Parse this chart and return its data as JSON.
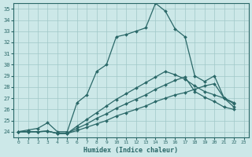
{
  "xlabel": "Humidex (Indice chaleur)",
  "background_color": "#cce8e8",
  "grid_color": "#a0c8c8",
  "line_color": "#2a6868",
  "xlim": [
    -0.5,
    23.5
  ],
  "ylim": [
    23.5,
    35.5
  ],
  "xticks": [
    0,
    1,
    2,
    3,
    4,
    5,
    6,
    7,
    8,
    9,
    10,
    11,
    12,
    13,
    14,
    15,
    16,
    17,
    18,
    19,
    20,
    21,
    22,
    23
  ],
  "yticks": [
    24,
    25,
    26,
    27,
    28,
    29,
    30,
    31,
    32,
    33,
    34,
    35
  ],
  "series1": [
    24.0,
    24.15,
    24.3,
    24.8,
    24.0,
    24.0,
    26.6,
    27.3,
    29.4,
    30.0,
    32.5,
    32.7,
    33.0,
    33.3,
    35.5,
    34.8,
    33.2,
    32.5,
    29.0,
    28.5,
    29.0,
    27.0,
    26.5
  ],
  "series2": [
    24.0,
    24.0,
    24.0,
    24.05,
    23.85,
    23.85,
    24.1,
    24.4,
    24.7,
    25.0,
    25.4,
    25.7,
    26.0,
    26.3,
    26.7,
    27.0,
    27.3,
    27.5,
    27.8,
    28.1,
    28.3,
    27.0,
    26.2
  ],
  "series3": [
    24.0,
    24.0,
    24.0,
    24.05,
    23.85,
    23.85,
    24.3,
    24.7,
    25.2,
    25.6,
    26.1,
    26.5,
    26.9,
    27.3,
    27.8,
    28.2,
    28.6,
    28.9,
    27.6,
    27.1,
    26.7,
    26.2,
    26.0
  ],
  "series4": [
    24.0,
    24.0,
    24.0,
    24.05,
    23.85,
    23.85,
    24.5,
    25.1,
    25.7,
    26.3,
    26.9,
    27.4,
    27.9,
    28.4,
    28.9,
    29.4,
    29.1,
    28.7,
    28.1,
    27.6,
    27.3,
    27.0,
    26.6
  ],
  "x_values": [
    0,
    1,
    2,
    3,
    4,
    5,
    6,
    7,
    8,
    9,
    10,
    11,
    12,
    13,
    14,
    15,
    16,
    17,
    18,
    19,
    20,
    21,
    22
  ]
}
